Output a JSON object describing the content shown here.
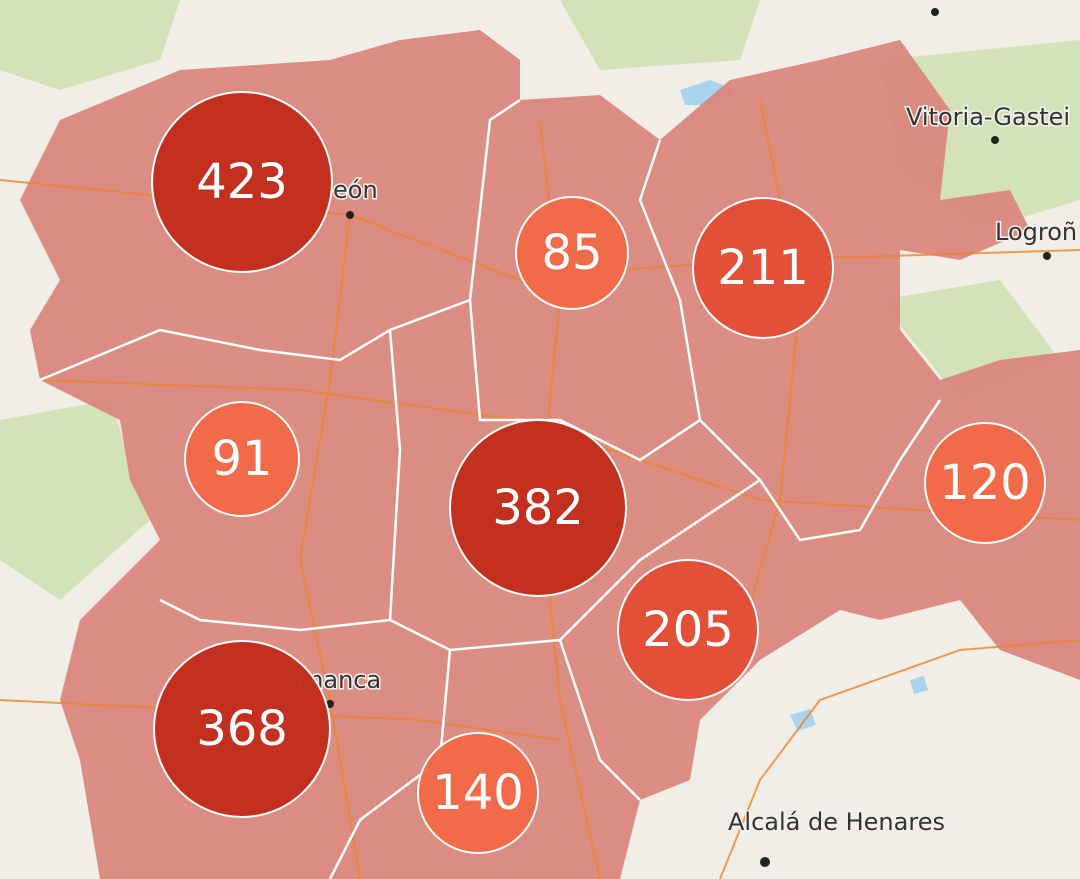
{
  "map": {
    "markers": [
      {
        "label": 423,
        "color": "#c32e1c"
      },
      {
        "label": 85,
        "color": "#f26a4a"
      },
      {
        "label": 211,
        "color": "#e24f35"
      },
      {
        "label": 91,
        "color": "#f26a4a"
      },
      {
        "label": 382,
        "color": "#c32e1c"
      },
      {
        "label": 120,
        "color": "#f26a4a"
      },
      {
        "label": 205,
        "color": "#e24f35"
      },
      {
        "label": 368,
        "color": "#c32e1c"
      },
      {
        "label": 140,
        "color": "#f26a4a"
      }
    ],
    "cities": [
      "eón",
      "Vitoria-Gastei",
      "Logroñ",
      "manca",
      "Alcalá de Henares"
    ]
  }
}
